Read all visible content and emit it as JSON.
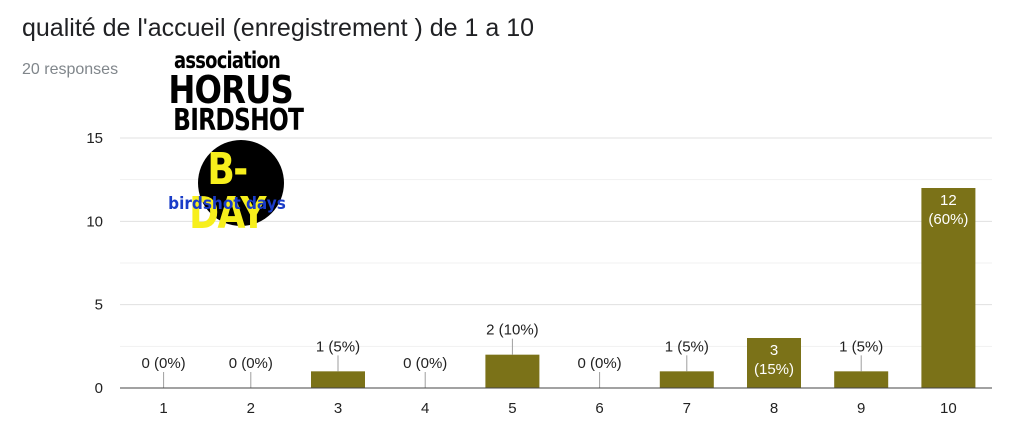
{
  "header": {
    "title": "qualité de l'accueil (enregistrement ) de 1 a 10",
    "responses": "20 responses"
  },
  "logo": {
    "line1": "association",
    "line2": "HORUS",
    "line3": "BIRDSHOT",
    "bday": "B-DAY",
    "sub": "birdshot days"
  },
  "colors": {
    "bar": "#7b7218",
    "grid": "#e6e6e6",
    "axis": "#444444",
    "label": "#222222"
  },
  "chart_data": {
    "type": "bar",
    "categories": [
      "1",
      "2",
      "3",
      "4",
      "5",
      "6",
      "7",
      "8",
      "9",
      "10"
    ],
    "values": [
      0,
      0,
      1,
      0,
      2,
      0,
      1,
      3,
      1,
      12
    ],
    "data_labels": [
      "0 (0%)",
      "0 (0%)",
      "1 (5%)",
      "0 (0%)",
      "2 (10%)",
      "0 (0%)",
      "1 (5%)",
      "3\n(15%)",
      "1 (5%)",
      "12\n(60%)"
    ],
    "ylim": [
      0,
      15
    ],
    "yticks": [
      0,
      5,
      10,
      15
    ],
    "grid": true,
    "legend": "none"
  }
}
